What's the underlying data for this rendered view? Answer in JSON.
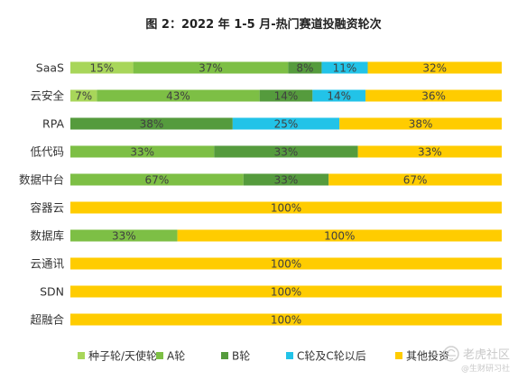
{
  "chart_data": {
    "type": "bar",
    "orientation": "horizontal",
    "stacked": true,
    "title": "图 2：2022 年 1-5 月-热门赛道投融资轮次",
    "categories": [
      "SaaS",
      "云安全",
      "RPA",
      "低代码",
      "数据中台",
      "容器云",
      "数据库",
      "云通讯",
      "SDN",
      "超融合"
    ],
    "series": [
      {
        "name": "种子轮/天使轮",
        "color": "#a8d65a",
        "values": [
          15,
          7,
          0,
          0,
          0,
          0,
          0,
          0,
          0,
          0
        ]
      },
      {
        "name": "A轮",
        "color": "#7dbf45",
        "values": [
          37,
          43,
          0,
          33,
          67,
          0,
          33,
          0,
          0,
          0
        ]
      },
      {
        "name": "B轮",
        "color": "#559b3d",
        "values": [
          8,
          14,
          38,
          33,
          33,
          0,
          0,
          0,
          0,
          0
        ]
      },
      {
        "name": "C轮及C轮以后",
        "color": "#22c3e8",
        "values": [
          11,
          14,
          25,
          0,
          0,
          0,
          0,
          0,
          0,
          0
        ]
      },
      {
        "name": "其他投资",
        "color": "#ffcc00",
        "values": [
          32,
          36,
          38,
          33,
          67,
          100,
          100,
          100,
          100,
          100
        ]
      }
    ],
    "labels": [
      [
        "15%",
        "37%",
        "8%",
        "11%",
        "32%"
      ],
      [
        "7%",
        "43%",
        "14%",
        "14%",
        "36%"
      ],
      [
        "",
        "",
        "38%",
        "25%",
        "38%"
      ],
      [
        "",
        "33%",
        "33%",
        "",
        "33%"
      ],
      [
        "",
        "67%",
        "33%",
        "",
        "67%"
      ],
      [
        "",
        "",
        "",
        "",
        "100%"
      ],
      [
        "",
        "33%",
        "",
        "",
        "100%"
      ],
      [
        "",
        "",
        "",
        "",
        "100%"
      ],
      [
        "",
        "",
        "",
        "",
        "100%"
      ],
      [
        "",
        "",
        "",
        "",
        "100%"
      ]
    ],
    "legend_position": "bottom",
    "grid": false
  },
  "watermark": {
    "name": "老虎社区",
    "sub": "@生财研习社",
    "color": "#c9c9c9"
  }
}
